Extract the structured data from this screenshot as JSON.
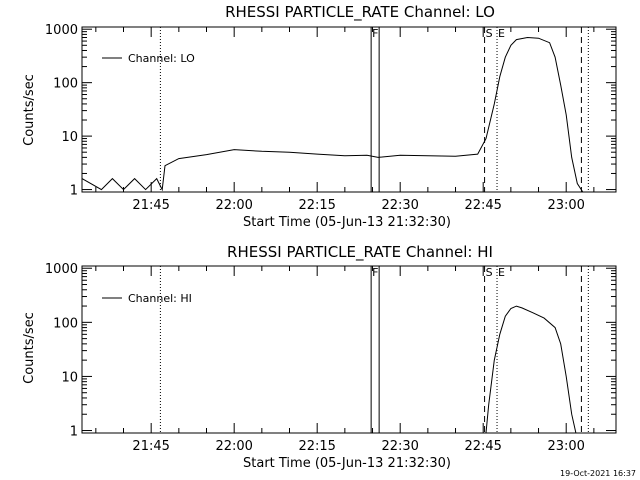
{
  "chart_data": [
    {
      "type": "line",
      "title": "RHESSI PARTICLE_RATE Channel: LO",
      "xlabel": "Start Time (05-Jun-13 21:32:30)",
      "ylabel": "Counts/sec",
      "y_scale": "log",
      "ylim": [
        0.9,
        1100
      ],
      "xlim": [
        "21:32:30",
        "23:09:00"
      ],
      "x_ticks": [
        "21:45",
        "22:00",
        "22:15",
        "22:30",
        "22:45",
        "23:00"
      ],
      "y_ticks": [
        "1",
        "10",
        "100",
        "1000"
      ],
      "legend": {
        "placement": "top-left",
        "entries": [
          "Channel: LO"
        ]
      },
      "grid": false,
      "series": [
        {
          "name": "Channel: LO",
          "x": [
            "21:32:30",
            "21:36",
            "21:38",
            "21:40",
            "21:42",
            "21:44",
            "21:46",
            "21:47",
            "21:47:30",
            "21:50",
            "21:55",
            "22:00",
            "22:05",
            "22:10",
            "22:15",
            "22:20",
            "22:24",
            "22:26",
            "22:30",
            "22:35",
            "22:40",
            "22:44",
            "22:45:30",
            "22:47",
            "22:48",
            "22:49",
            "22:50",
            "22:51",
            "22:53",
            "22:55",
            "22:57",
            "22:58",
            "22:59",
            "23:00",
            "23:01",
            "23:02",
            "23:03"
          ],
          "y": [
            1.6,
            1.0,
            1.6,
            1.0,
            1.6,
            1.0,
            1.6,
            1.0,
            2.8,
            3.8,
            4.5,
            5.6,
            5.2,
            5.0,
            4.6,
            4.3,
            4.4,
            4.0,
            4.4,
            4.3,
            4.2,
            4.6,
            9,
            40,
            130,
            300,
            500,
            640,
            700,
            680,
            560,
            300,
            90,
            25,
            4,
            1.3,
            0.9
          ]
        }
      ],
      "annotations": [
        {
          "label": "F",
          "x": "22:24:45",
          "style": "solid"
        },
        {
          "label": "S",
          "x": "22:45:15",
          "style": "dashed"
        },
        {
          "label": "E",
          "x": "22:47:30",
          "style": "dotted"
        },
        {
          "label": "",
          "x": "21:46:40",
          "style": "dotted"
        },
        {
          "label": "",
          "x": "23:02:45",
          "style": "dashed"
        },
        {
          "label": "",
          "x": "23:04:00",
          "style": "dotted"
        }
      ]
    },
    {
      "type": "line",
      "title": "RHESSI PARTICLE_RATE Channel: HI",
      "xlabel": "Start Time (05-Jun-13 21:32:30)",
      "ylabel": "Counts/sec",
      "y_scale": "log",
      "ylim": [
        0.9,
        1100
      ],
      "xlim": [
        "21:32:30",
        "23:09:00"
      ],
      "x_ticks": [
        "21:45",
        "22:00",
        "22:15",
        "22:30",
        "22:45",
        "23:00"
      ],
      "y_ticks": [
        "1",
        "10",
        "100",
        "1000"
      ],
      "legend": {
        "placement": "top-left",
        "entries": [
          "Channel: HI"
        ]
      },
      "grid": false,
      "series": [
        {
          "name": "Channel: HI",
          "x": [
            "22:45:30",
            "22:46",
            "22:47",
            "22:48",
            "22:49",
            "22:50",
            "22:51",
            "22:52",
            "22:54",
            "22:56",
            "22:58",
            "22:59",
            "23:00",
            "23:01",
            "23:01:45"
          ],
          "y": [
            0.9,
            3,
            20,
            60,
            130,
            180,
            200,
            185,
            150,
            120,
            80,
            40,
            10,
            2,
            0.9
          ]
        }
      ],
      "annotations": [
        {
          "label": "F",
          "x": "22:24:45",
          "style": "solid"
        },
        {
          "label": "S",
          "x": "22:45:15",
          "style": "dashed"
        },
        {
          "label": "E",
          "x": "22:47:30",
          "style": "dotted"
        },
        {
          "label": "",
          "x": "21:46:40",
          "style": "dotted"
        },
        {
          "label": "",
          "x": "23:02:45",
          "style": "dashed"
        },
        {
          "label": "",
          "x": "23:04:00",
          "style": "dotted"
        }
      ]
    }
  ],
  "footer": {
    "timestamp": "19-Oct-2021 16:37"
  }
}
